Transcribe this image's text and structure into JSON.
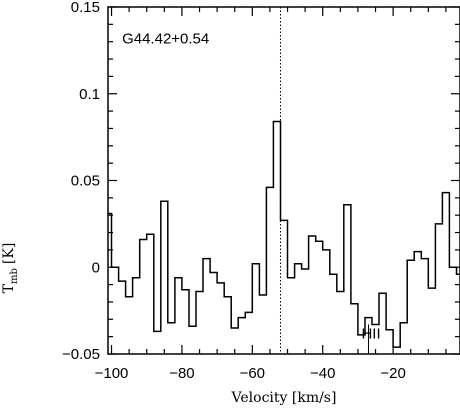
{
  "chart_data": {
    "type": "line",
    "style": "step",
    "xlabel": "Velocity [km/s]",
    "ylabel": "T",
    "ylabel_sub": "mb",
    "ylabel_unit": "[K]",
    "xlim": [
      -101,
      -1
    ],
    "ylim": [
      -0.05,
      0.15
    ],
    "x_ticks": [
      -100,
      -80,
      -60,
      -40,
      -20
    ],
    "x_tick_labels": [
      "−100",
      "−80",
      "−60",
      "−40",
      "−20"
    ],
    "y_ticks": [
      -0.05,
      0,
      0.05,
      0.1,
      0.15
    ],
    "y_tick_labels": [
      "−0.05",
      "0",
      "0.05",
      "0.1",
      "0.15"
    ],
    "annotations": [
      {
        "text": "G44.42+0.54",
        "x": -97,
        "y": 0.129
      },
      {
        "text": "HII",
        "x": -29,
        "y": -0.041
      }
    ],
    "reference_line": {
      "x": -52,
      "style": "dotted"
    },
    "hii_marker_x": -27,
    "series": [
      {
        "x": [
          -101,
          -99,
          -97,
          -95,
          -93,
          -91,
          -89,
          -87,
          -85,
          -83,
          -81,
          -79,
          -77,
          -75,
          -73,
          -71,
          -69,
          -67,
          -65,
          -63,
          -61,
          -59,
          -57,
          -55,
          -53,
          -51,
          -49,
          -47,
          -45,
          -43,
          -41,
          -39,
          -37,
          -35,
          -33,
          -31,
          -29,
          -27,
          -25,
          -23,
          -21,
          -19,
          -17,
          -15,
          -13,
          -11,
          -9,
          -7,
          -5,
          -3,
          -1
        ],
        "values": [
          0.031,
          0.0,
          -0.008,
          -0.017,
          -0.006,
          0.016,
          0.019,
          -0.037,
          0.038,
          -0.032,
          -0.006,
          -0.013,
          -0.034,
          -0.014,
          0.005,
          -0.003,
          -0.009,
          -0.017,
          -0.035,
          -0.029,
          -0.026,
          0.002,
          -0.016,
          0.046,
          0.084,
          0.027,
          -0.006,
          0.002,
          -0.001,
          0.018,
          0.015,
          0.01,
          -0.004,
          -0.014,
          0.036,
          -0.021,
          -0.039,
          -0.029,
          -0.033,
          -0.015,
          -0.036,
          -0.046,
          -0.032,
          0.004,
          0.009,
          0.005,
          -0.012,
          0.025,
          0.043,
          0.0,
          -0.004
        ]
      }
    ]
  }
}
